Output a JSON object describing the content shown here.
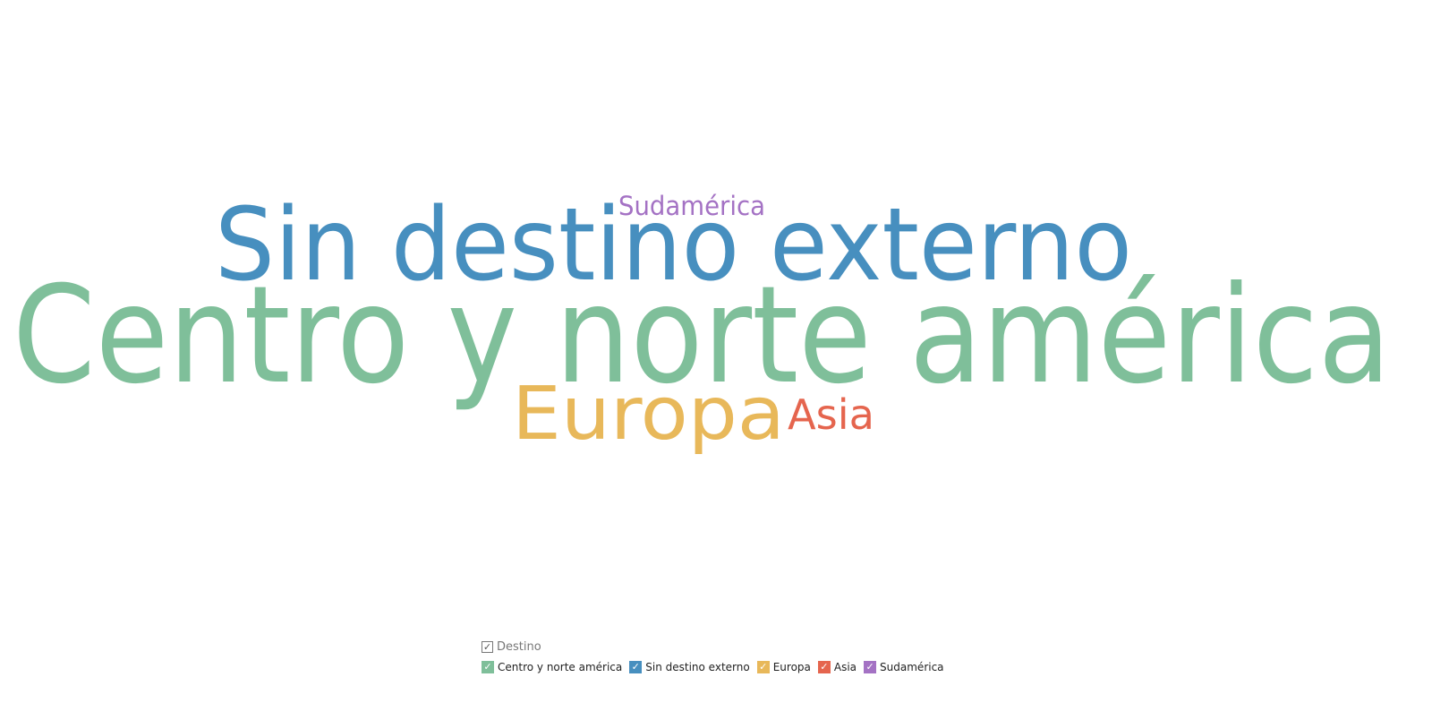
{
  "chart_data": {
    "type": "wordcloud",
    "legend_placement": "bottom-center",
    "legend_title": "Destino",
    "words": [
      {
        "text": "Centro y norte américa",
        "rank": 1,
        "color": "#7fbf9a"
      },
      {
        "text": "Sin destino externo",
        "rank": 2,
        "color": "#478fbf"
      },
      {
        "text": "Europa",
        "rank": 3,
        "color": "#e8b85a"
      },
      {
        "text": "Asia",
        "rank": 4,
        "color": "#e5654e"
      },
      {
        "text": "Sudamérica",
        "rank": 5,
        "color": "#a472c4"
      }
    ]
  },
  "legend": {
    "title": "Destino",
    "check_glyph": "✓",
    "items": [
      {
        "label": "Centro y norte américa",
        "color": "#7fbf9a"
      },
      {
        "label": "Sin destino externo",
        "color": "#478fbf"
      },
      {
        "label": "Europa",
        "color": "#e8b85a"
      },
      {
        "label": "Asia",
        "color": "#e5654e"
      },
      {
        "label": "Sudamérica",
        "color": "#a472c4"
      }
    ]
  }
}
